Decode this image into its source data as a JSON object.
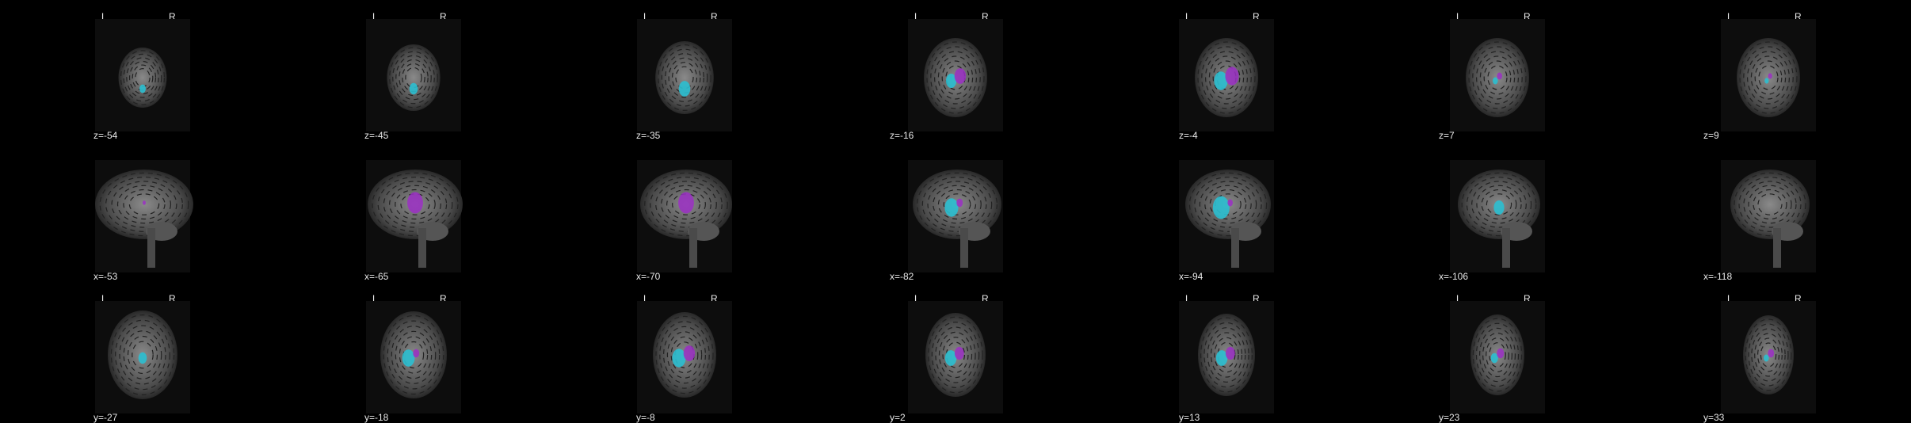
{
  "orientation": {
    "left": "L",
    "right": "R"
  },
  "colors": {
    "background": "#000000",
    "label_a": "#2bbfd0",
    "label_b": "#9b2fc4",
    "brain": "#6b6b6b"
  },
  "rows": [
    {
      "view": "axial",
      "show_lr": true,
      "slices": [
        {
          "coord": "z=-54",
          "cyan": 0.12,
          "purple": 0.0
        },
        {
          "coord": "z=-45",
          "cyan": 0.16,
          "purple": 0.0
        },
        {
          "coord": "z=-35",
          "cyan": 0.22,
          "purple": 0.0
        },
        {
          "coord": "z=-16",
          "cyan": 0.2,
          "purple": 0.22
        },
        {
          "coord": "z=-4",
          "cyan": 0.26,
          "purple": 0.26
        },
        {
          "coord": "z=7",
          "cyan": 0.1,
          "purple": 0.1
        },
        {
          "coord": "z=9",
          "cyan": 0.08,
          "purple": 0.08
        }
      ]
    },
    {
      "view": "sagittal",
      "show_lr": false,
      "slices": [
        {
          "coord": "x=-53",
          "cyan": 0.0,
          "purple": 0.06
        },
        {
          "coord": "x=-65",
          "cyan": 0.0,
          "purple": 0.3
        },
        {
          "coord": "x=-70",
          "cyan": 0.0,
          "purple": 0.3
        },
        {
          "coord": "x=-82",
          "cyan": 0.26,
          "purple": 0.12
        },
        {
          "coord": "x=-94",
          "cyan": 0.32,
          "purple": 0.1
        },
        {
          "coord": "x=-106",
          "cyan": 0.2,
          "purple": 0.0
        },
        {
          "coord": "x=-118",
          "cyan": 0.0,
          "purple": 0.0
        }
      ]
    },
    {
      "view": "coronal",
      "show_lr": true,
      "slices": [
        {
          "coord": "y=-27",
          "cyan": 0.16,
          "purple": 0.0
        },
        {
          "coord": "y=-18",
          "cyan": 0.24,
          "purple": 0.12
        },
        {
          "coord": "y=-8",
          "cyan": 0.26,
          "purple": 0.22
        },
        {
          "coord": "y=2",
          "cyan": 0.22,
          "purple": 0.18
        },
        {
          "coord": "y=13",
          "cyan": 0.22,
          "purple": 0.18
        },
        {
          "coord": "y=23",
          "cyan": 0.14,
          "purple": 0.14
        },
        {
          "coord": "y=33",
          "cyan": 0.1,
          "purple": 0.12
        }
      ]
    }
  ]
}
